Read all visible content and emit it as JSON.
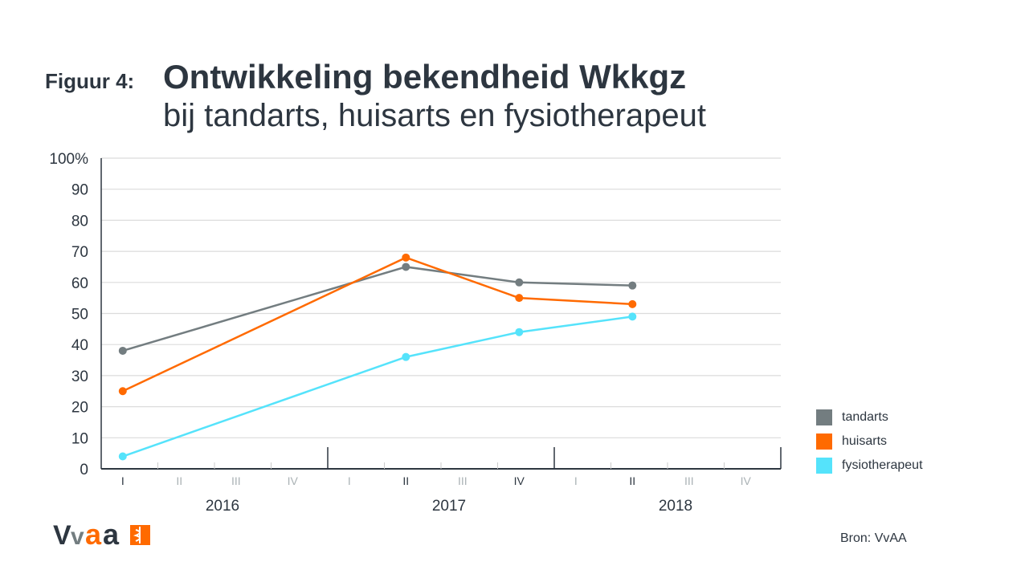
{
  "header": {
    "figure_label": "Figuur 4:",
    "title": "Ontwikkeling bekendheid Wkkgz",
    "subtitle": "bij tandarts, huisarts en fysiotherapeut"
  },
  "source": "Bron: VvAA",
  "logo_text": "VvAA",
  "chart_data": {
    "type": "line",
    "ylim": [
      0,
      100
    ],
    "yticks": [
      "0",
      "10",
      "20",
      "30",
      "40",
      "50",
      "60",
      "70",
      "80",
      "90",
      "100%"
    ],
    "grid": true,
    "legend_position": "right",
    "quarters": [
      "I",
      "II",
      "III",
      "IV",
      "I",
      "II",
      "III",
      "IV",
      "I",
      "II",
      "III",
      "IV"
    ],
    "years": [
      "2016",
      "2017",
      "2018"
    ],
    "x": [
      "2016 I",
      "2017 II",
      "2017 IV",
      "2018 II"
    ],
    "series": [
      {
        "name": "tandarts",
        "color": "#737d80",
        "values": [
          38,
          65,
          60,
          59
        ]
      },
      {
        "name": "huisarts",
        "color": "#ff6a00",
        "values": [
          25,
          68,
          55,
          53
        ]
      },
      {
        "name": "fysiotherapeut",
        "color": "#55e3fb",
        "values": [
          4,
          36,
          44,
          49
        ]
      }
    ]
  }
}
